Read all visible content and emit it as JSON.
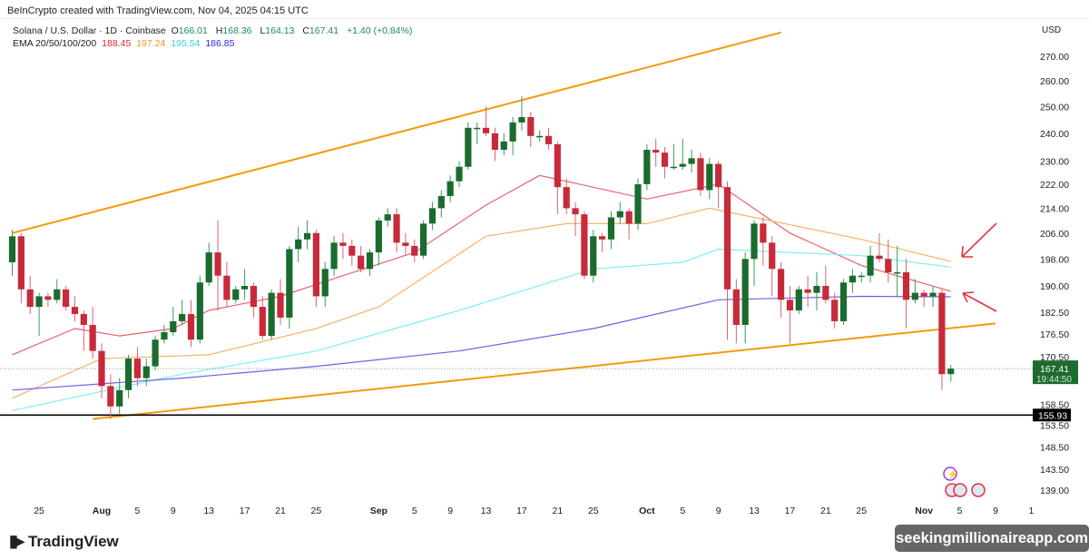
{
  "header": {
    "credit": "BeInCrypto created with TradingView.com, Nov 04, 2025 04:15 UTC"
  },
  "legend": {
    "symbol": "Solana / U.S. Dollar · 1D · Coinbase",
    "o_label": "O",
    "o": "166.01",
    "h_label": "H",
    "h": "168.36",
    "l_label": "L",
    "l": "164.13",
    "c_label": "C",
    "c": "167.41",
    "change": "+1.40 (+0.84%)",
    "ema_label": "EMA 20/50/100/200",
    "ema20": "188.45",
    "ema50": "197.24",
    "ema100": "195.54",
    "ema200": "186.85"
  },
  "currency": "USD",
  "footer": {
    "logo": "TradingView",
    "watermark": "seekingmillionaireapp.com"
  },
  "colors": {
    "up": "#1b6b2f",
    "down": "#c72a3a",
    "ema20": "#e8636e",
    "ema50": "#f5b36b",
    "ema100": "#7feef2",
    "ema200": "#6e63e0",
    "trend": "#f29b0c",
    "support": "#000000",
    "arrow": "#e0343f"
  },
  "chart_data": {
    "type": "candlestick",
    "scale": "log",
    "ylim": [
      138,
      285
    ],
    "y_ticks": [
      "270.00",
      "260.00",
      "250.00",
      "240.00",
      "230.00",
      "222.00",
      "214.00",
      "206.00",
      "198.00",
      "190.00",
      "182.50",
      "176.50",
      "170.50",
      "158.50",
      "153.50",
      "148.50",
      "143.50",
      "139.00"
    ],
    "x_ticks": [
      [
        "2025-07-25",
        "25"
      ],
      [
        "2025-08-01",
        "Aug"
      ],
      [
        "2025-08-05",
        "5"
      ],
      [
        "2025-08-09",
        "9"
      ],
      [
        "2025-08-13",
        "13"
      ],
      [
        "2025-08-17",
        "17"
      ],
      [
        "2025-08-21",
        "21"
      ],
      [
        "2025-08-25",
        "25"
      ],
      [
        "2025-09-01",
        "Sep"
      ],
      [
        "2025-09-05",
        "5"
      ],
      [
        "2025-09-09",
        "9"
      ],
      [
        "2025-09-13",
        "13"
      ],
      [
        "2025-09-17",
        "17"
      ],
      [
        "2025-09-21",
        "21"
      ],
      [
        "2025-09-25",
        "25"
      ],
      [
        "2025-10-01",
        "Oct"
      ],
      [
        "2025-10-05",
        "5"
      ],
      [
        "2025-10-09",
        "9"
      ],
      [
        "2025-10-13",
        "13"
      ],
      [
        "2025-10-17",
        "17"
      ],
      [
        "2025-10-21",
        "21"
      ],
      [
        "2025-10-25",
        "25"
      ],
      [
        "2025-11-01",
        "Nov"
      ],
      [
        "2025-11-05",
        "5"
      ],
      [
        "2025-11-09",
        "9"
      ],
      [
        "2025-11-13",
        "1"
      ]
    ],
    "last_price": {
      "value": 167.41,
      "label": "167.41",
      "countdown": "19:44:50"
    },
    "support": {
      "value": 155.93,
      "label": "155.93"
    },
    "candles": [
      [
        "2025-07-22",
        197,
        207,
        193,
        205
      ],
      [
        "2025-07-23",
        205,
        206,
        185,
        189
      ],
      [
        "2025-07-24",
        189,
        193,
        182,
        184
      ],
      [
        "2025-07-25",
        184,
        188,
        176,
        187
      ],
      [
        "2025-07-26",
        187,
        188,
        184,
        186
      ],
      [
        "2025-07-27",
        186,
        192,
        185,
        189
      ],
      [
        "2025-07-28",
        189,
        190,
        183,
        184
      ],
      [
        "2025-07-29",
        184,
        187,
        180,
        182
      ],
      [
        "2025-07-30",
        182,
        183,
        172,
        179
      ],
      [
        "2025-07-31",
        179,
        184,
        170,
        172
      ],
      [
        "2025-08-01",
        172,
        174,
        160,
        163
      ],
      [
        "2025-08-02",
        163,
        166,
        155,
        158
      ],
      [
        "2025-08-03",
        158,
        165,
        156,
        162
      ],
      [
        "2025-08-04",
        162,
        171,
        160,
        170
      ],
      [
        "2025-08-05",
        170,
        173,
        163,
        165
      ],
      [
        "2025-08-06",
        165,
        170,
        163,
        168
      ],
      [
        "2025-08-07",
        168,
        176,
        167,
        175
      ],
      [
        "2025-08-08",
        175,
        179,
        174,
        177
      ],
      [
        "2025-08-09",
        177,
        184,
        176,
        180
      ],
      [
        "2025-08-10",
        180,
        186,
        179,
        182
      ],
      [
        "2025-08-11",
        182,
        186,
        173,
        175
      ],
      [
        "2025-08-12",
        175,
        193,
        174,
        191
      ],
      [
        "2025-08-13",
        191,
        203,
        190,
        200
      ],
      [
        "2025-08-14",
        200,
        210,
        183,
        193
      ],
      [
        "2025-08-15",
        193,
        197,
        184,
        186
      ],
      [
        "2025-08-16",
        186,
        190,
        185,
        189
      ],
      [
        "2025-08-17",
        189,
        195,
        186,
        190
      ],
      [
        "2025-08-18",
        190,
        191,
        181,
        184
      ],
      [
        "2025-08-19",
        184,
        187,
        175,
        176
      ],
      [
        "2025-08-20",
        176,
        189,
        175,
        188
      ],
      [
        "2025-08-21",
        188,
        192,
        179,
        181
      ],
      [
        "2025-08-22",
        181,
        202,
        178,
        201
      ],
      [
        "2025-08-23",
        201,
        208,
        197,
        204
      ],
      [
        "2025-08-24",
        204,
        210,
        201,
        206
      ],
      [
        "2025-08-25",
        206,
        207,
        184,
        187
      ],
      [
        "2025-08-26",
        187,
        197,
        184,
        195
      ],
      [
        "2025-08-27",
        195,
        205,
        193,
        203
      ],
      [
        "2025-08-28",
        203,
        206,
        198,
        202
      ],
      [
        "2025-08-29",
        202,
        204,
        196,
        199
      ],
      [
        "2025-08-30",
        199,
        202,
        194,
        195
      ],
      [
        "2025-08-31",
        195,
        201,
        193,
        200
      ],
      [
        "2025-09-01",
        200,
        211,
        196,
        210
      ],
      [
        "2025-09-02",
        210,
        214,
        208,
        212
      ],
      [
        "2025-09-03",
        212,
        214,
        200,
        203
      ],
      [
        "2025-09-04",
        203,
        206,
        199,
        202
      ],
      [
        "2025-09-05",
        202,
        204,
        197,
        199
      ],
      [
        "2025-09-06",
        199,
        210,
        198,
        209
      ],
      [
        "2025-09-07",
        209,
        216,
        207,
        214
      ],
      [
        "2025-09-08",
        214,
        220,
        211,
        218
      ],
      [
        "2025-09-09",
        218,
        225,
        216,
        223
      ],
      [
        "2025-09-10",
        223,
        230,
        221,
        228
      ],
      [
        "2025-09-11",
        228,
        244,
        227,
        242
      ],
      [
        "2025-09-12",
        242,
        244,
        236,
        242
      ],
      [
        "2025-09-13",
        242,
        250,
        239,
        240
      ],
      [
        "2025-09-14",
        240,
        242,
        230,
        234
      ],
      [
        "2025-09-15",
        234,
        240,
        232,
        237
      ],
      [
        "2025-09-16",
        237,
        246,
        232,
        244
      ],
      [
        "2025-09-17",
        244,
        254,
        241,
        246
      ],
      [
        "2025-09-18",
        246,
        248,
        235,
        239
      ],
      [
        "2025-09-19",
        239,
        241,
        237,
        239
      ],
      [
        "2025-09-20",
        239,
        242,
        234,
        236
      ],
      [
        "2025-09-21",
        236,
        237,
        212,
        221
      ],
      [
        "2025-09-22",
        221,
        224,
        212,
        214
      ],
      [
        "2025-09-23",
        214,
        216,
        205,
        212
      ],
      [
        "2025-09-24",
        212,
        213,
        192,
        193
      ],
      [
        "2025-09-25",
        193,
        207,
        191,
        205
      ],
      [
        "2025-09-26",
        205,
        206,
        200,
        204
      ],
      [
        "2025-09-27",
        204,
        213,
        201,
        211
      ],
      [
        "2025-09-28",
        211,
        216,
        209,
        213
      ],
      [
        "2025-09-29",
        213,
        214,
        204,
        209
      ],
      [
        "2025-09-30",
        209,
        224,
        207,
        222
      ],
      [
        "2025-10-01",
        222,
        236,
        220,
        234
      ],
      [
        "2025-10-02",
        234,
        238,
        228,
        233
      ],
      [
        "2025-10-03",
        233,
        235,
        224,
        228
      ],
      [
        "2025-10-04",
        228,
        236,
        227,
        228
      ],
      [
        "2025-10-05",
        228,
        238,
        227,
        229
      ],
      [
        "2025-10-06",
        229,
        234,
        226,
        231
      ],
      [
        "2025-10-07",
        231,
        233,
        218,
        220
      ],
      [
        "2025-10-08",
        220,
        231,
        217,
        229
      ],
      [
        "2025-10-09",
        229,
        230,
        214,
        221
      ],
      [
        "2025-10-10",
        221,
        223,
        175,
        189
      ],
      [
        "2025-10-11",
        189,
        192,
        174,
        179
      ],
      [
        "2025-10-12",
        179,
        200,
        174,
        198
      ],
      [
        "2025-10-13",
        198,
        210,
        190,
        209
      ],
      [
        "2025-10-14",
        209,
        211,
        196,
        203
      ],
      [
        "2025-10-15",
        203,
        205,
        187,
        195
      ],
      [
        "2025-10-16",
        195,
        197,
        181,
        186
      ],
      [
        "2025-10-17",
        186,
        190,
        174,
        183
      ],
      [
        "2025-10-18",
        183,
        190,
        182,
        189
      ],
      [
        "2025-10-19",
        189,
        193,
        184,
        188
      ],
      [
        "2025-10-20",
        188,
        194,
        183,
        190
      ],
      [
        "2025-10-21",
        190,
        196,
        185,
        186
      ],
      [
        "2025-10-22",
        186,
        188,
        178,
        180
      ],
      [
        "2025-10-23",
        180,
        192,
        179,
        191
      ],
      [
        "2025-10-24",
        191,
        195,
        188,
        193
      ],
      [
        "2025-10-25",
        193,
        194,
        191,
        193
      ],
      [
        "2025-10-26",
        193,
        202,
        191,
        199
      ],
      [
        "2025-10-27",
        199,
        206,
        197,
        198
      ],
      [
        "2025-10-28",
        198,
        204,
        191,
        194
      ],
      [
        "2025-10-29",
        194,
        202,
        187,
        194
      ],
      [
        "2025-10-30",
        194,
        198,
        178,
        186
      ],
      [
        "2025-10-31",
        186,
        192,
        185,
        188
      ],
      [
        "2025-11-01",
        188,
        189,
        184,
        187
      ],
      [
        "2025-11-02",
        187,
        190,
        184,
        188
      ],
      [
        "2025-11-03",
        188,
        189,
        162,
        166
      ],
      [
        "2025-11-04",
        166.01,
        168.36,
        164.13,
        167.41
      ]
    ],
    "ema": [
      {
        "name": "EMA 20",
        "color": "#e8636e",
        "points": [
          [
            "2025-07-22",
            171
          ],
          [
            "2025-07-29",
            178
          ],
          [
            "2025-08-03",
            176
          ],
          [
            "2025-08-09",
            178
          ],
          [
            "2025-08-13",
            183
          ],
          [
            "2025-08-21",
            187
          ],
          [
            "2025-08-28",
            193
          ],
          [
            "2025-09-05",
            200
          ],
          [
            "2025-09-13",
            215
          ],
          [
            "2025-09-19",
            225
          ],
          [
            "2025-10-01",
            217
          ],
          [
            "2025-10-09",
            222
          ],
          [
            "2025-10-17",
            206
          ],
          [
            "2025-10-25",
            196
          ],
          [
            "2025-11-04",
            188.45
          ]
        ]
      },
      {
        "name": "EMA 50",
        "color": "#f5b36b",
        "points": [
          [
            "2025-07-22",
            160
          ],
          [
            "2025-08-01",
            170
          ],
          [
            "2025-08-13",
            171
          ],
          [
            "2025-08-25",
            178
          ],
          [
            "2025-09-01",
            184
          ],
          [
            "2025-09-13",
            205
          ],
          [
            "2025-09-22",
            209
          ],
          [
            "2025-10-01",
            209
          ],
          [
            "2025-10-08",
            214
          ],
          [
            "2025-10-25",
            204
          ],
          [
            "2025-11-04",
            197.24
          ]
        ]
      },
      {
        "name": "EMA 100",
        "color": "#7feef2",
        "points": [
          [
            "2025-07-22",
            157
          ],
          [
            "2025-08-10",
            166
          ],
          [
            "2025-08-25",
            172
          ],
          [
            "2025-09-10",
            183
          ],
          [
            "2025-09-25",
            195
          ],
          [
            "2025-10-05",
            197
          ],
          [
            "2025-10-09",
            201
          ],
          [
            "2025-10-25",
            199
          ],
          [
            "2025-11-04",
            195.54
          ]
        ]
      },
      {
        "name": "EMA 200",
        "color": "#6e63e0",
        "points": [
          [
            "2025-07-22",
            162
          ],
          [
            "2025-08-10",
            165
          ],
          [
            "2025-08-25",
            168
          ],
          [
            "2025-09-10",
            172
          ],
          [
            "2025-09-25",
            178
          ],
          [
            "2025-10-09",
            186
          ],
          [
            "2025-10-25",
            187
          ],
          [
            "2025-11-04",
            186.85
          ]
        ]
      }
    ],
    "trendlines": [
      {
        "name": "upper-channel",
        "from": [
          "2025-07-22",
          206
        ],
        "to": [
          "2025-10-16",
          280
        ]
      },
      {
        "name": "lower-channel",
        "from": [
          "2025-07-31",
          155
        ],
        "to": [
          "2025-11-09",
          179.4
        ]
      }
    ],
    "annotations": [
      {
        "type": "arrow",
        "points_to": "EMA 50/100"
      },
      {
        "type": "arrow",
        "points_to": "EMA 20/200"
      }
    ]
  }
}
